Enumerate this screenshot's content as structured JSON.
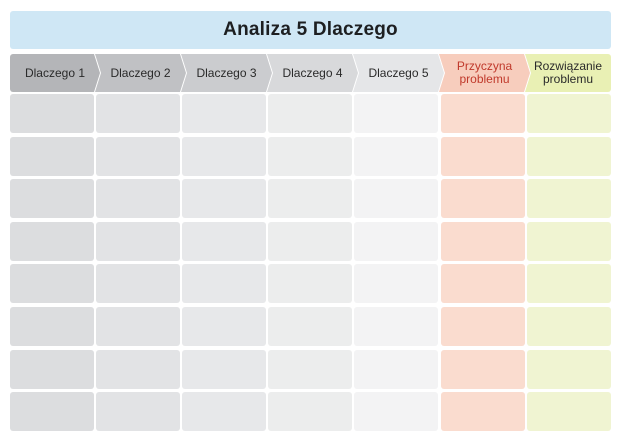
{
  "title": "Analiza 5 Dlaczego",
  "colors": {
    "title_bg": "#cfe7f5",
    "header_bg": [
      "#b4b5b8",
      "#c0c1c4",
      "#cbcccf",
      "#d8d9db",
      "#e5e6e8",
      "#f7cdbd",
      "#e9f0b4"
    ],
    "cell_bg": [
      "#dcdddf",
      "#e2e3e5",
      "#e7e8ea",
      "#eceded",
      "#f3f3f4",
      "#fadccf",
      "#f0f4d2"
    ]
  },
  "columns": [
    {
      "label": "Dlaczego 1"
    },
    {
      "label": "Dlaczego 2"
    },
    {
      "label": "Dlaczego 3"
    },
    {
      "label": "Dlaczego 4"
    },
    {
      "label": "Dlaczego 5"
    },
    {
      "label": "Przyczyna problemu"
    },
    {
      "label": "Rozwiązanie problemu"
    }
  ],
  "row_count": 8
}
